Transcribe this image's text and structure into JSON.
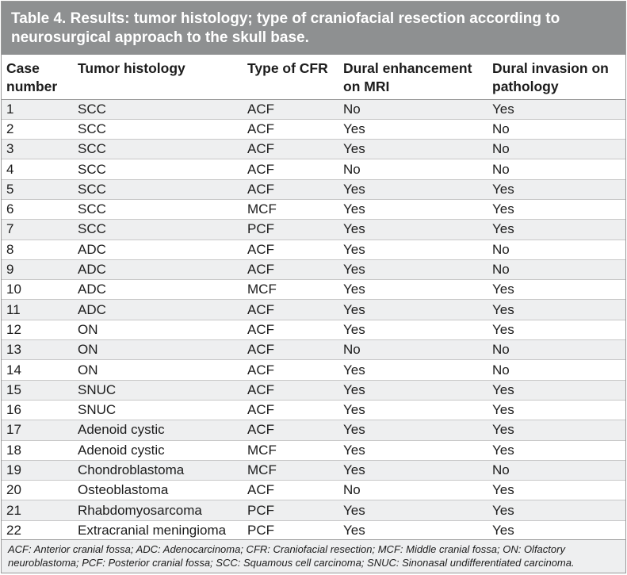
{
  "title": "Table 4. Results: tumor histology; type of craniofacial resection according to neurosurgical approach to the skull base.",
  "columns": [
    "Case number",
    "Tumor histology",
    "Type of CFR",
    "Dural enhancement on MRI",
    "Dural invasion on pathology"
  ],
  "rows": [
    [
      "1",
      "SCC",
      "ACF",
      "No",
      "Yes"
    ],
    [
      "2",
      "SCC",
      "ACF",
      "Yes",
      "No"
    ],
    [
      "3",
      "SCC",
      "ACF",
      "Yes",
      "No"
    ],
    [
      "4",
      "SCC",
      "ACF",
      "No",
      "No"
    ],
    [
      "5",
      "SCC",
      "ACF",
      "Yes",
      "Yes"
    ],
    [
      "6",
      "SCC",
      "MCF",
      "Yes",
      "Yes"
    ],
    [
      "7",
      "SCC",
      "PCF",
      "Yes",
      "Yes"
    ],
    [
      "8",
      "ADC",
      "ACF",
      "Yes",
      "No"
    ],
    [
      "9",
      "ADC",
      "ACF",
      "Yes",
      "No"
    ],
    [
      "10",
      "ADC",
      "MCF",
      "Yes",
      "Yes"
    ],
    [
      "11",
      "ADC",
      "ACF",
      "Yes",
      "Yes"
    ],
    [
      "12",
      "ON",
      "ACF",
      "Yes",
      "Yes"
    ],
    [
      "13",
      "ON",
      "ACF",
      "No",
      "No"
    ],
    [
      "14",
      "ON",
      "ACF",
      "Yes",
      "No"
    ],
    [
      "15",
      "SNUC",
      "ACF",
      "Yes",
      "Yes"
    ],
    [
      "16",
      "SNUC",
      "ACF",
      "Yes",
      "Yes"
    ],
    [
      "17",
      "Adenoid cystic",
      "ACF",
      "Yes",
      "Yes"
    ],
    [
      "18",
      "Adenoid cystic",
      "MCF",
      "Yes",
      "Yes"
    ],
    [
      "19",
      "Chondroblastoma",
      "MCF",
      "Yes",
      "No"
    ],
    [
      "20",
      "Osteoblastoma",
      "ACF",
      "No",
      "Yes"
    ],
    [
      "21",
      "Rhabdomyosarcoma",
      "PCF",
      "Yes",
      "Yes"
    ],
    [
      "22",
      "Extracranial meningioma",
      "PCF",
      "Yes",
      "Yes"
    ]
  ],
  "footnote": "ACF: Anterior cranial fossa; ADC: Adenocarcinoma; CFR: Craniofacial resection; MCF: Middle cranial fossa; ON: Olfactory neuroblastoma; PCF: Posterior cranial fossa; SCC: Squamous cell carcinoma; SNUC: Sinonasal undifferentiated carcinoma.",
  "colors": {
    "title_bg": "#8e9091",
    "row_stripe": "#eeeff0"
  }
}
